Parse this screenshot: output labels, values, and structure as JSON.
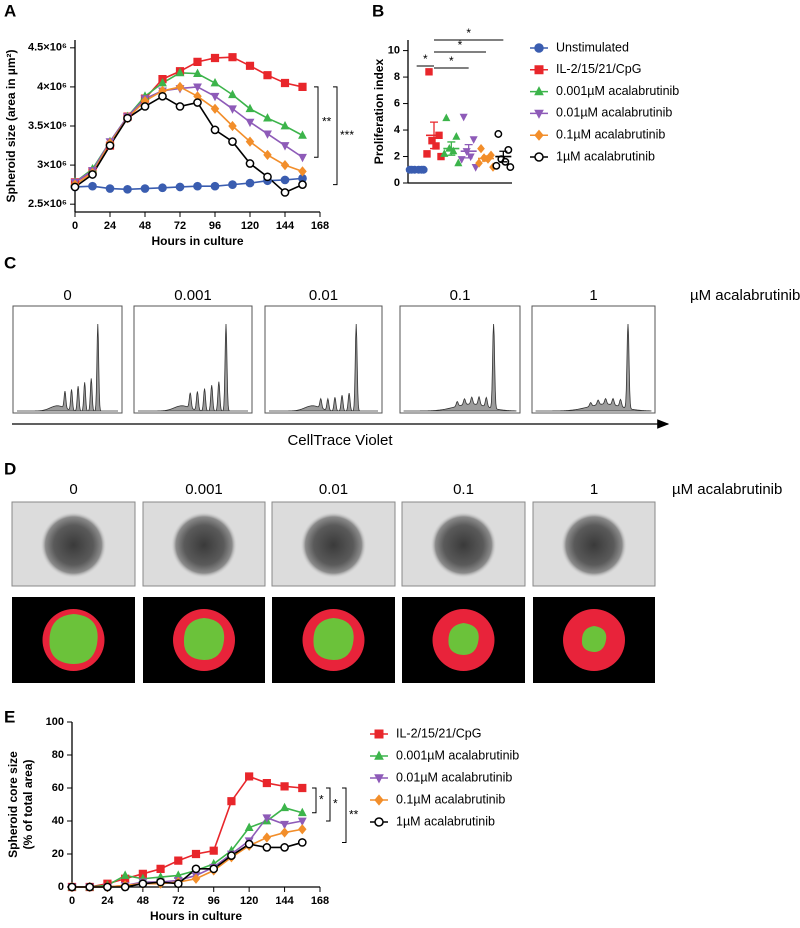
{
  "chart_data": [
    {
      "type": "line",
      "panel": "A",
      "xlabel": "Hours in culture",
      "ylabel": "Spheroid size (area in µm²)",
      "x": [
        0,
        12,
        24,
        36,
        48,
        60,
        72,
        84,
        96,
        108,
        120,
        132,
        144,
        156
      ],
      "xlim": [
        0,
        168
      ],
      "xticks": [
        0,
        24,
        48,
        72,
        96,
        120,
        144,
        168
      ],
      "ylim": [
        2400000,
        4600000
      ],
      "yticks": [
        {
          "value": 2500000,
          "label": "2.5×10⁶"
        },
        {
          "value": 3000000,
          "label": "3×10⁶"
        },
        {
          "value": 3500000,
          "label": "3.5×10⁶"
        },
        {
          "value": 4000000,
          "label": "4×10⁶"
        },
        {
          "value": 4500000,
          "label": "4.5×10⁶"
        }
      ],
      "annotations": [
        "**",
        "***"
      ],
      "series": [
        {
          "color": "#3a5db0",
          "marker": "circle",
          "values": [
            2720000,
            2730000,
            2700000,
            2690000,
            2700000,
            2710000,
            2720000,
            2730000,
            2730000,
            2750000,
            2770000,
            2800000,
            2810000,
            2830000
          ]
        },
        {
          "color": "#e8262b",
          "marker": "square",
          "values": [
            2780000,
            2920000,
            3250000,
            3620000,
            3850000,
            4100000,
            4200000,
            4320000,
            4370000,
            4380000,
            4270000,
            4150000,
            4050000,
            4000000
          ]
        },
        {
          "color": "#3cb44b",
          "marker": "triangle",
          "values": [
            2780000,
            2950000,
            3300000,
            3620000,
            3880000,
            4050000,
            4180000,
            4170000,
            4050000,
            3900000,
            3720000,
            3600000,
            3500000,
            3380000
          ]
        },
        {
          "color": "#8e5bb8",
          "marker": "triangle-down",
          "values": [
            2780000,
            2930000,
            3300000,
            3620000,
            3850000,
            3950000,
            3980000,
            4000000,
            3880000,
            3720000,
            3550000,
            3400000,
            3250000,
            3100000
          ]
        },
        {
          "color": "#f28e2b",
          "marker": "diamond",
          "values": [
            2750000,
            2900000,
            3280000,
            3600000,
            3820000,
            3950000,
            4000000,
            3880000,
            3720000,
            3500000,
            3300000,
            3130000,
            3000000,
            2920000
          ]
        },
        {
          "color": "#000000",
          "marker": "circle-open",
          "values": [
            2720000,
            2880000,
            3250000,
            3600000,
            3750000,
            3880000,
            3750000,
            3800000,
            3450000,
            3300000,
            3020000,
            2850000,
            2650000,
            2750000
          ]
        }
      ]
    },
    {
      "type": "strip",
      "panel": "B",
      "ylabel": "Proliferation index",
      "categories": [
        null,
        null,
        null,
        null,
        null,
        null
      ],
      "ylim": [
        0,
        10.8
      ],
      "yticks": [
        0,
        2,
        4,
        6,
        8,
        10
      ],
      "annotations": [
        "*",
        "*",
        "*",
        "*"
      ],
      "series": [
        {
          "name": "Unstimulated",
          "color": "#3a5db0",
          "marker": "circle",
          "values": [
            1,
            1,
            1,
            1,
            1,
            1
          ],
          "mean": 1,
          "sem": 0.02
        },
        {
          "name": "IL-2/15/21/CpG",
          "color": "#e8262b",
          "marker": "square",
          "values": [
            8.4,
            3.6,
            3.2,
            2.8,
            2.2,
            2.0
          ],
          "mean": 3.6,
          "sem": 1.0
        },
        {
          "name": "0.001µM acalabrutinib",
          "color": "#3cb44b",
          "marker": "triangle",
          "values": [
            4.9,
            3.5,
            2.6,
            2.4,
            2.2,
            1.5
          ],
          "mean": 2.6,
          "sem": 0.5
        },
        {
          "name": "0.01µM acalabrutinib",
          "color": "#8e5bb8",
          "marker": "triangle-down",
          "values": [
            5.0,
            3.3,
            2.4,
            2.0,
            1.8,
            1.2
          ],
          "mean": 2.4,
          "sem": 0.5
        },
        {
          "name": "0.1µM acalabrutinib",
          "color": "#f28e2b",
          "marker": "diamond",
          "values": [
            2.6,
            2.1,
            1.9,
            1.8,
            1.5,
            1.2
          ],
          "mean": 1.85,
          "sem": 0.2
        },
        {
          "name": "1µM acalabrutinib",
          "color": "#000000",
          "marker": "circle-open",
          "values": [
            3.7,
            2.5,
            1.8,
            1.6,
            1.3,
            1.2
          ],
          "mean": 2.0,
          "sem": 0.4
        }
      ]
    },
    {
      "type": "line",
      "panel": "E",
      "xlabel": "Hours in culture",
      "ylabel": [
        "Spheroid core size",
        "(% of total area)"
      ],
      "x": [
        0,
        12,
        24,
        36,
        48,
        60,
        72,
        84,
        96,
        108,
        120,
        132,
        144,
        156
      ],
      "xlim": [
        0,
        168
      ],
      "xticks": [
        0,
        24,
        48,
        72,
        96,
        120,
        144,
        168
      ],
      "ylim": [
        0,
        100
      ],
      "yticks": [
        0,
        20,
        40,
        60,
        80,
        100
      ],
      "annotations": [
        "*",
        "*",
        "**"
      ],
      "series": [
        {
          "name": "IL-2/15/21/CpG",
          "color": "#e8262b",
          "marker": "square",
          "values": [
            0,
            0,
            2,
            5,
            8,
            11,
            16,
            20,
            22,
            52,
            67,
            63,
            61,
            60
          ]
        },
        {
          "name": "0.001µM acalabrutinib",
          "color": "#3cb44b",
          "marker": "triangle",
          "values": [
            0,
            0,
            1,
            7,
            5,
            6,
            7,
            10,
            14,
            22,
            36,
            40,
            48,
            45
          ]
        },
        {
          "name": "0.01µM acalabrutinib",
          "color": "#8e5bb8",
          "marker": "triangle-down",
          "values": [
            0,
            0,
            0,
            1,
            3,
            3,
            4,
            7,
            12,
            20,
            28,
            42,
            38,
            40
          ]
        },
        {
          "name": "0.1µM acalabrutinib",
          "color": "#f28e2b",
          "marker": "diamond",
          "values": [
            0,
            0,
            0,
            1,
            2,
            2,
            3,
            5,
            10,
            18,
            25,
            30,
            33,
            35
          ]
        },
        {
          "name": "1µM acalabrutinib",
          "color": "#000000",
          "marker": "circle-open",
          "values": [
            0,
            0,
            0,
            0,
            2,
            3,
            2,
            11,
            11,
            19,
            26,
            24,
            24,
            27
          ]
        }
      ]
    }
  ],
  "panel_c": {
    "letter": "C",
    "conditions": [
      "0",
      "0.001",
      "0.01",
      "0.1",
      "1"
    ],
    "unit": "µM acalabrutinib",
    "x_label": "CellTrace Violet"
  },
  "panel_d": {
    "letter": "D",
    "conditions": [
      "0",
      "0.001",
      "0.01",
      "0.1",
      "1"
    ],
    "unit": "µM acalabrutinib"
  }
}
